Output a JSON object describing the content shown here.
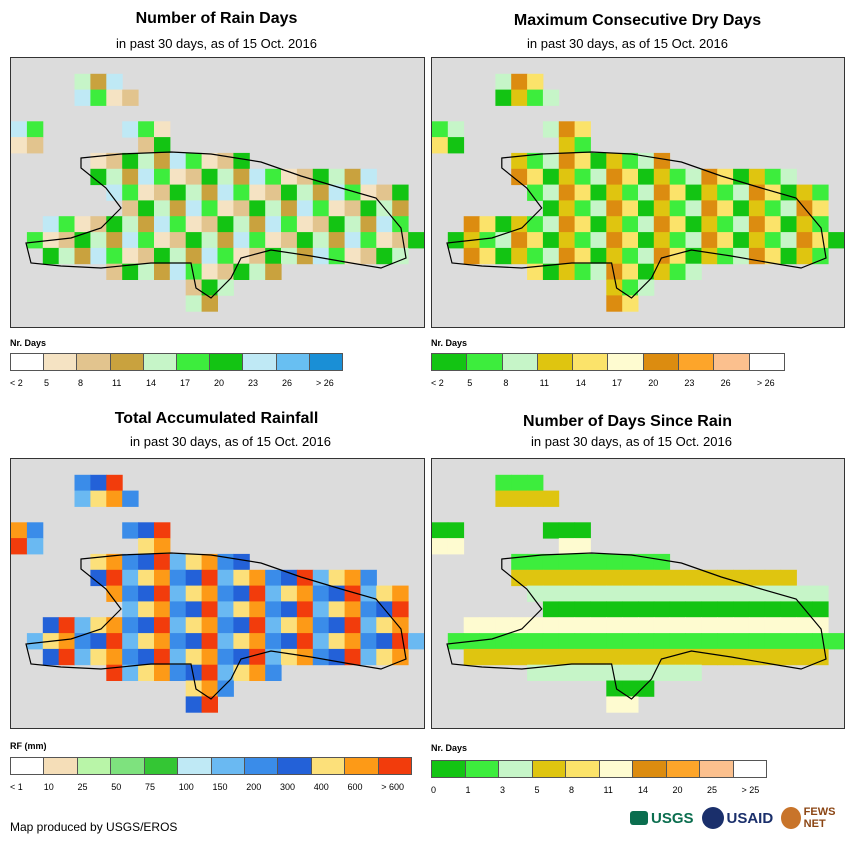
{
  "panels": [
    {
      "title": "Number of Rain Days",
      "subtitle": "in past 30 days, as of 15 Oct. 2016",
      "legend_title": "Nr. Days",
      "legend_labels": [
        "< 2",
        "5",
        "8",
        "11",
        "14",
        "17",
        "20",
        "23",
        "26",
        "> 26"
      ],
      "legend_colors": [
        "#ffffff",
        "#f5e3c3",
        "#e2c48e",
        "#c9a23e",
        "#c6f5c8",
        "#3ded3d",
        "#13c413",
        "#bfe9f5",
        "#68bff2",
        "#1a8fd6"
      ],
      "grid_colors": [
        "#c9a23e",
        "#f5e3c3",
        "#c6f5c8",
        "#3ded3d",
        "#13c413",
        "#bfe9f5",
        "#e2c48e"
      ]
    },
    {
      "title": "Maximum Consecutive Dry Days",
      "subtitle": "in past 30 days, as of 15 Oct. 2016",
      "legend_title": "Nr. Days",
      "legend_labels": [
        "< 2",
        "5",
        "8",
        "11",
        "14",
        "17",
        "20",
        "23",
        "26",
        "> 26"
      ],
      "legend_colors": [
        "#13c413",
        "#3ded3d",
        "#c6f5c8",
        "#dfc510",
        "#fbe36a",
        "#fefbd0",
        "#dc8c10",
        "#fda52a",
        "#fbc08e",
        "#ffffff"
      ],
      "grid_colors": [
        "#c6f5c8",
        "#3ded3d",
        "#dfc510",
        "#13c413",
        "#fbe36a",
        "#dc8c10"
      ]
    },
    {
      "title": "Total Accumulated Rainfall",
      "subtitle": "in past 30 days, as of 15 Oct. 2016",
      "legend_title": "RF (mm)",
      "legend_labels": [
        "< 1",
        "10",
        "25",
        "50",
        "75",
        "100",
        "150",
        "200",
        "300",
        "400",
        "600",
        "> 600"
      ],
      "legend_colors": [
        "#ffffff",
        "#f5deb8",
        "#b9f5a8",
        "#7ee27e",
        "#34c634",
        "#bfe9f5",
        "#6ab9f2",
        "#3a8ce9",
        "#2361d8",
        "#fce07a",
        "#fd9a17",
        "#f23c0c"
      ],
      "grid_colors": [
        "#2361d8",
        "#3a8ce9",
        "#fd9a17",
        "#fce07a",
        "#6ab9f2",
        "#f23c0c"
      ]
    },
    {
      "title": "Number of Days Since Rain",
      "subtitle": "in past 30 days, as of 15 Oct. 2016",
      "legend_title": "Nr. Days",
      "legend_labels": [
        "0",
        "1",
        "3",
        "5",
        "8",
        "11",
        "14",
        "20",
        "25",
        "> 25"
      ],
      "legend_colors": [
        "#13c413",
        "#3ded3d",
        "#c6f5c8",
        "#dfc510",
        "#fbe36a",
        "#fefbd0",
        "#dc8c10",
        "#fda52a",
        "#fbc08e",
        "#ffffff"
      ],
      "grid_colors": [
        "#13c413",
        "#3ded3d",
        "#c6f5c8",
        "#fefbd0",
        "#dfc510"
      ]
    }
  ],
  "footer": {
    "credit": "Map produced by USGS/EROS",
    "logos": [
      "USGS",
      "USAID",
      "FEWS NET"
    ]
  }
}
